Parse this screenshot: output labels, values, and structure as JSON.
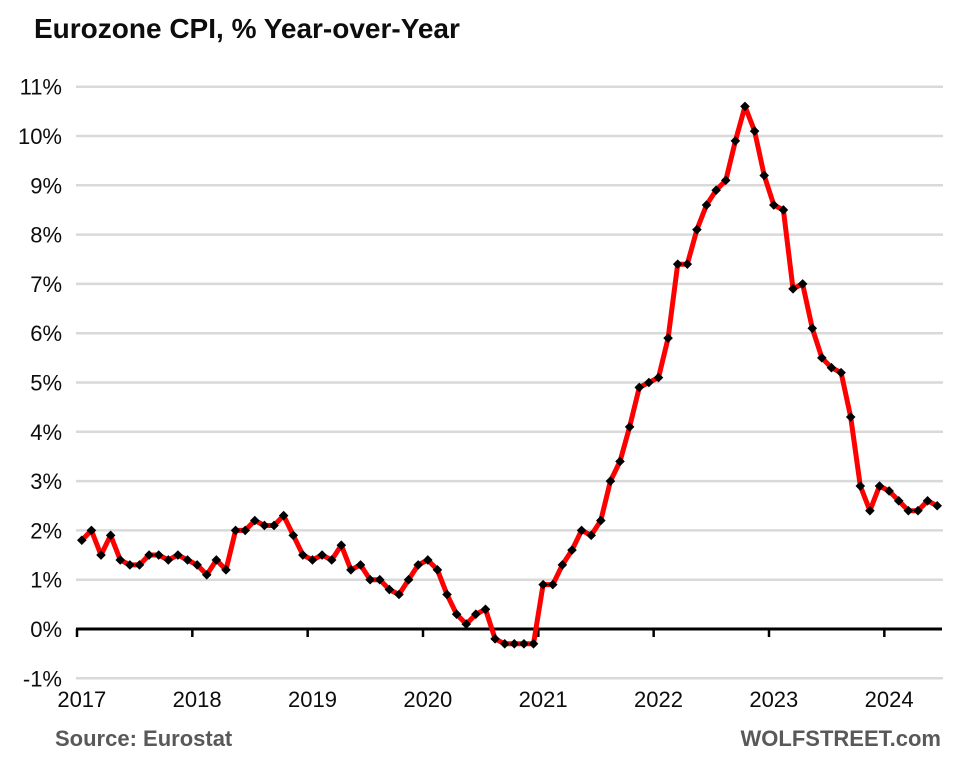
{
  "header": {
    "title": "Eurozone CPI, % Year-over-Year"
  },
  "footer": {
    "source": "Source: Eurostat",
    "brand": "WOLFSTREET.com"
  },
  "colors": {
    "line": "#fe0000",
    "marker": "#000000",
    "grid": "#d9d9d9",
    "axis": "#000000",
    "label": "#0d0d0d",
    "muted": "#595959",
    "background": "#ffffff"
  },
  "chart_data": {
    "type": "line",
    "title": "Eurozone CPI, % Year-over-Year",
    "xlabel": "",
    "ylabel": "",
    "unit": "percent",
    "frequency": "monthly",
    "grid": "horizontal",
    "legend": "none",
    "ylim": [
      -1,
      11
    ],
    "y_step": 1,
    "y_tick_labels": [
      "-1%",
      "0%",
      "1%",
      "2%",
      "3%",
      "4%",
      "5%",
      "6%",
      "7%",
      "8%",
      "9%",
      "10%",
      "11%"
    ],
    "x_tick_labels": [
      "2017",
      "2018",
      "2019",
      "2020",
      "2021",
      "2022",
      "2023",
      "2024"
    ],
    "x_range": "Jan 2017 - Jun 2024",
    "series": [
      {
        "name": "Eurozone CPI, % Year-over-Year",
        "color": "#fe0000",
        "marker": "black-diamond",
        "values_by_year": {
          "2017": [
            1.8,
            2.0,
            1.5,
            1.9,
            1.4,
            1.3,
            1.3,
            1.5,
            1.5,
            1.4,
            1.5,
            1.4
          ],
          "2018": [
            1.3,
            1.1,
            1.4,
            1.2,
            2.0,
            2.0,
            2.2,
            2.1,
            2.1,
            2.3,
            1.9,
            1.5
          ],
          "2019": [
            1.4,
            1.5,
            1.4,
            1.7,
            1.2,
            1.3,
            1.0,
            1.0,
            0.8,
            0.7,
            1.0,
            1.3
          ],
          "2020": [
            1.4,
            1.2,
            0.7,
            0.3,
            0.1,
            0.3,
            0.4,
            -0.2,
            -0.3,
            -0.3,
            -0.3,
            -0.3
          ],
          "2021": [
            0.9,
            0.9,
            1.3,
            1.6,
            2.0,
            1.9,
            2.2,
            3.0,
            3.4,
            4.1,
            4.9,
            5.0
          ],
          "2022": [
            5.1,
            5.9,
            7.4,
            7.4,
            8.1,
            8.6,
            8.9,
            9.1,
            9.9,
            10.6,
            10.1,
            9.2
          ],
          "2023": [
            8.6,
            8.5,
            6.9,
            7.0,
            6.1,
            5.5,
            5.3,
            5.2,
            4.3,
            2.9,
            2.4,
            2.9
          ],
          "2024": [
            2.8,
            2.6,
            2.4,
            2.4,
            2.6,
            2.5
          ]
        }
      }
    ]
  }
}
